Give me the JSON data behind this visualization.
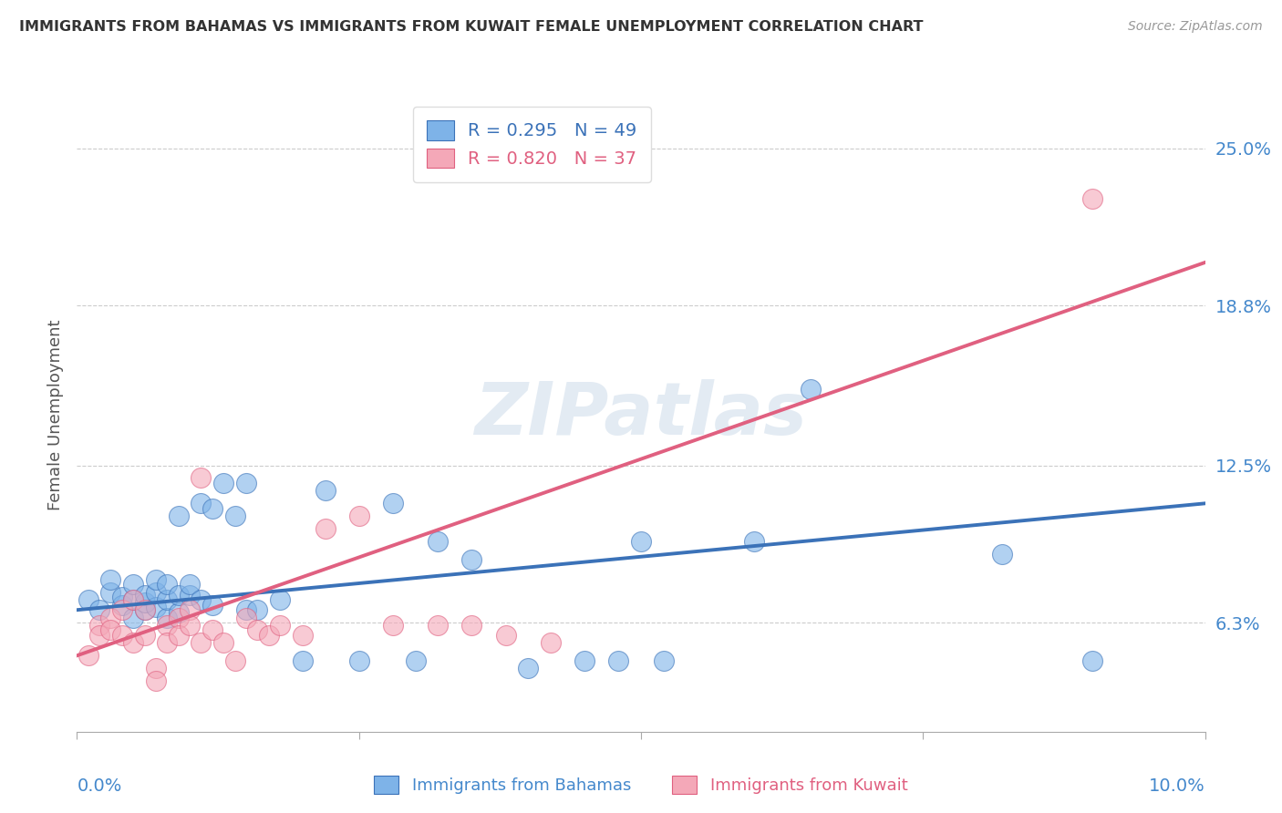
{
  "title": "IMMIGRANTS FROM BAHAMAS VS IMMIGRANTS FROM KUWAIT FEMALE UNEMPLOYMENT CORRELATION CHART",
  "source": "Source: ZipAtlas.com",
  "ylabel": "Female Unemployment",
  "ytick_labels": [
    "6.3%",
    "12.5%",
    "18.8%",
    "25.0%"
  ],
  "ytick_values": [
    0.063,
    0.125,
    0.188,
    0.25
  ],
  "xlim": [
    0.0,
    0.1
  ],
  "ylim": [
    0.02,
    0.27
  ],
  "watermark": "ZIPatlas",
  "legend_blue_r": "R = 0.295",
  "legend_blue_n": "N = 49",
  "legend_pink_r": "R = 0.820",
  "legend_pink_n": "N = 37",
  "blue_color": "#7EB3E8",
  "pink_color": "#F4A8B8",
  "blue_line_color": "#3B72B8",
  "pink_line_color": "#E06080",
  "grid_color": "#CCCCCC",
  "title_color": "#333333",
  "axis_label_color": "#4488CC",
  "bahamas_x": [
    0.001,
    0.002,
    0.003,
    0.003,
    0.004,
    0.004,
    0.005,
    0.005,
    0.005,
    0.006,
    0.006,
    0.006,
    0.007,
    0.007,
    0.007,
    0.008,
    0.008,
    0.008,
    0.009,
    0.009,
    0.009,
    0.01,
    0.01,
    0.011,
    0.011,
    0.012,
    0.012,
    0.013,
    0.014,
    0.015,
    0.015,
    0.016,
    0.018,
    0.02,
    0.022,
    0.025,
    0.028,
    0.03,
    0.032,
    0.035,
    0.04,
    0.045,
    0.048,
    0.05,
    0.052,
    0.06,
    0.065,
    0.082,
    0.09
  ],
  "bahamas_y": [
    0.072,
    0.068,
    0.075,
    0.08,
    0.07,
    0.073,
    0.065,
    0.072,
    0.078,
    0.068,
    0.071,
    0.074,
    0.069,
    0.075,
    0.08,
    0.065,
    0.072,
    0.078,
    0.067,
    0.074,
    0.105,
    0.074,
    0.078,
    0.072,
    0.11,
    0.07,
    0.108,
    0.118,
    0.105,
    0.068,
    0.118,
    0.068,
    0.072,
    0.048,
    0.115,
    0.048,
    0.11,
    0.048,
    0.095,
    0.088,
    0.045,
    0.048,
    0.048,
    0.095,
    0.048,
    0.095,
    0.155,
    0.09,
    0.048
  ],
  "kuwait_x": [
    0.001,
    0.002,
    0.002,
    0.003,
    0.003,
    0.004,
    0.004,
    0.005,
    0.005,
    0.006,
    0.006,
    0.007,
    0.007,
    0.008,
    0.008,
    0.009,
    0.009,
    0.01,
    0.01,
    0.011,
    0.011,
    0.012,
    0.013,
    0.014,
    0.015,
    0.016,
    0.017,
    0.018,
    0.02,
    0.022,
    0.025,
    0.028,
    0.032,
    0.035,
    0.038,
    0.042,
    0.09
  ],
  "kuwait_y": [
    0.05,
    0.062,
    0.058,
    0.065,
    0.06,
    0.068,
    0.058,
    0.072,
    0.055,
    0.068,
    0.058,
    0.045,
    0.04,
    0.062,
    0.055,
    0.065,
    0.058,
    0.068,
    0.062,
    0.055,
    0.12,
    0.06,
    0.055,
    0.048,
    0.065,
    0.06,
    0.058,
    0.062,
    0.058,
    0.1,
    0.105,
    0.062,
    0.062,
    0.062,
    0.058,
    0.055,
    0.23
  ],
  "blue_trendline_x": [
    0.0,
    0.1
  ],
  "blue_trendline_y": [
    0.068,
    0.11
  ],
  "pink_trendline_x": [
    0.0,
    0.1
  ],
  "pink_trendline_y": [
    0.05,
    0.205
  ]
}
